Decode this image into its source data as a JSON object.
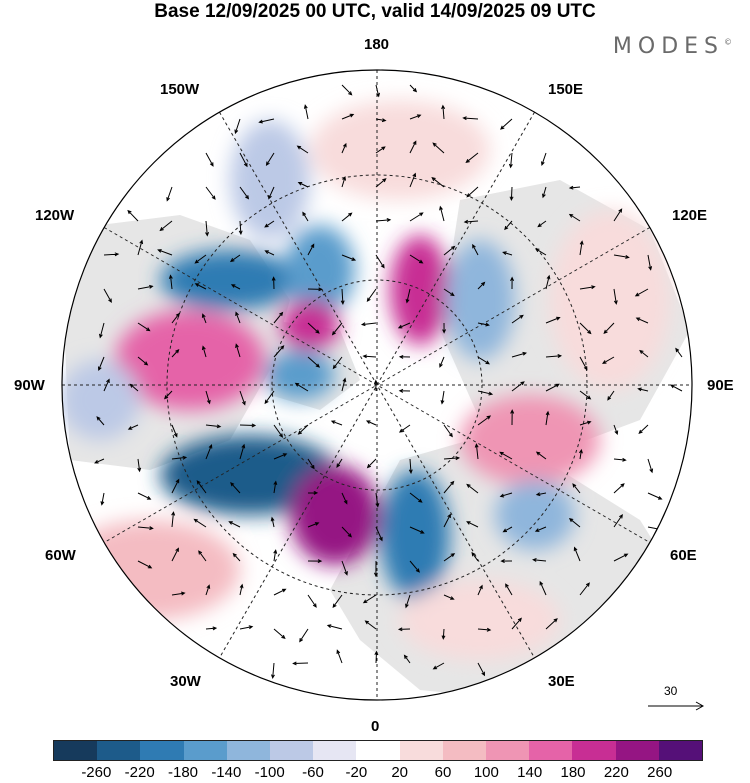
{
  "title": "Base 12/09/2025 00 UTC, valid 14/09/2025 09 UTC",
  "brand": "MODES",
  "brand_mark": "©",
  "map": {
    "projection": "north-polar-stereographic",
    "longitude_labels": {
      "top": "180",
      "bottom": "0",
      "left": "90W",
      "right": "90E",
      "upper_left_outer": "150W",
      "upper_left_inner": "120W",
      "lower_left_inner": "60W",
      "lower_left_outer": "30W",
      "upper_right_outer": "150E",
      "upper_right_inner": "120E",
      "lower_right_inner": "60E",
      "lower_right_outer": "30E"
    },
    "land_color": "#e6e6e6",
    "ocean_color": "#ffffff",
    "graticule": "dashed"
  },
  "wind_reference": {
    "label": "30"
  },
  "colorbar": {
    "colors": [
      "#163a5c",
      "#1d5b8a",
      "#2f7bb3",
      "#5a9ccc",
      "#8fb6dc",
      "#bcc9e6",
      "#e6e6f3",
      "#ffffff",
      "#f8dcdc",
      "#f4bcc2",
      "#ef95b4",
      "#e563a8",
      "#c82e94",
      "#951583",
      "#551078"
    ],
    "ticks": [
      "-260",
      "-220",
      "-180",
      "-140",
      "-100",
      "-60",
      "-20",
      "20",
      "60",
      "100",
      "140",
      "180",
      "220",
      "260"
    ]
  }
}
